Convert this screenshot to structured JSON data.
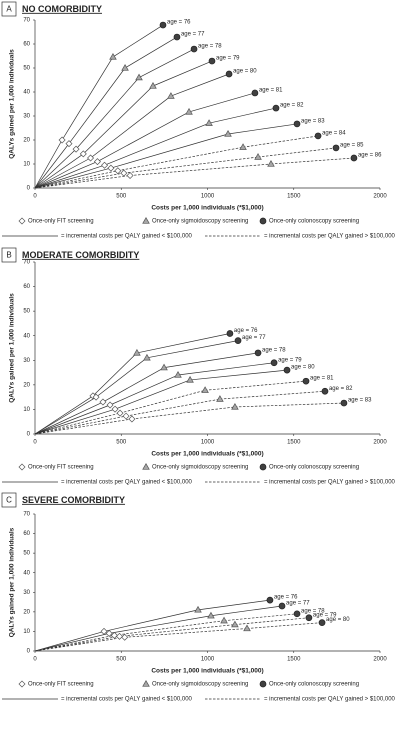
{
  "chart_data": [
    {
      "type": "scatter",
      "label": "A",
      "title": "NO COMORBIDITY",
      "xlabel": "Costs per 1,000  individuals (*$1,000)",
      "ylabel": "QALYs gained per 1,000 individuals",
      "xlim": [
        0,
        2000
      ],
      "ylim": [
        0,
        70
      ],
      "xticks": [
        0,
        500,
        1000,
        1500,
        2000
      ],
      "yticks": [
        0,
        10,
        20,
        30,
        40,
        50,
        60,
        70
      ],
      "series": [
        {
          "name": "Once-only FIT screening",
          "marker": "diamond",
          "color": "#ffffff",
          "x": [
            157,
            197,
            238,
            280,
            322,
            362,
            403,
            440,
            480,
            515,
            551
          ],
          "values": [
            20,
            18.5,
            16.2,
            14.2,
            12.5,
            11,
            9.5,
            8.3,
            7.2,
            6.2,
            5.2
          ]
        },
        {
          "name": "Once-only sigmoidoscopy screening",
          "marker": "triangle",
          "color": "#a6a6a6",
          "x": [
            452,
            522,
            603,
            684,
            788,
            893,
            1009,
            1119,
            1206,
            1293,
            1368
          ],
          "values": [
            54.6,
            50,
            46,
            42.5,
            38.3,
            31.7,
            27,
            22.5,
            17,
            12.9,
            10
          ]
        },
        {
          "name": "Once-only colonoscopy screening",
          "marker": "circle",
          "color": "#404040",
          "x": [
            742,
            823,
            922,
            1026,
            1125,
            1275,
            1397,
            1519,
            1641,
            1745,
            1849
          ],
          "values": [
            67.9,
            62.9,
            57.9,
            52.9,
            47.5,
            39.6,
            33.3,
            26.7,
            21.7,
            16.7,
            12.5
          ],
          "point_labels": [
            "age = 76",
            "age = 77",
            "age = 78",
            "age = 79",
            "age = 80",
            "age = 81",
            "age = 82",
            "age = 83",
            "age = 84",
            "age = 85",
            "age = 86"
          ]
        }
      ],
      "line_styles": [
        "solid",
        "solid",
        "solid",
        "solid",
        "solid",
        "solid",
        "solid",
        "solid",
        "dashed",
        "dashed",
        "dashed"
      ],
      "line_legend": [
        {
          "style": "solid",
          "label": "= incremental costs per QALY gained < $100,000"
        },
        {
          "style": "dashed",
          "label": "= incremental costs per QALY gained > $100,000"
        }
      ]
    },
    {
      "type": "scatter",
      "label": "B",
      "title": "MODERATE COMORBIDITY",
      "xlabel": "Costs per 1,000  individuals (*$1,000)",
      "ylabel": "QALYs gained per 1,000 individuals",
      "xlim": [
        0,
        2000
      ],
      "ylim": [
        0,
        70
      ],
      "xticks": [
        0,
        500,
        1000,
        1500,
        2000
      ],
      "yticks": [
        0,
        10,
        20,
        30,
        40,
        50,
        60,
        70
      ],
      "series": [
        {
          "name": "Once-only FIT screening",
          "marker": "diamond",
          "color": "#ffffff",
          "x": [
            336,
            354,
            394,
            435,
            464,
            493,
            528,
            562
          ],
          "values": [
            15.5,
            15,
            13,
            11.8,
            10.1,
            8.5,
            7.3,
            6.1
          ]
        },
        {
          "name": "Once-only sigmoidoscopy screening",
          "marker": "triangle",
          "color": "#a6a6a6",
          "x": [
            591,
            649,
            748,
            829,
            899,
            986,
            1072,
            1159
          ],
          "values": [
            33,
            31,
            27,
            24,
            22,
            17.8,
            14.2,
            11
          ]
        },
        {
          "name": "Once-only colonoscopy screening",
          "marker": "circle",
          "color": "#404040",
          "x": [
            1130,
            1177,
            1293,
            1386,
            1461,
            1571,
            1681,
            1791
          ],
          "values": [
            40.9,
            38,
            33,
            29,
            26,
            21.5,
            17.4,
            12.6
          ],
          "point_labels": [
            "age = 76",
            "age = 77",
            "age = 78",
            "age = 79",
            "age = 80",
            "age = 81",
            "age = 82",
            "age = 83"
          ]
        }
      ],
      "line_styles": [
        "solid",
        "solid",
        "solid",
        "solid",
        "solid",
        "dashed",
        "dashed",
        "dashed"
      ],
      "line_legend": [
        {
          "style": "solid",
          "label": "= incremental costs per QALY gained < $100,000"
        },
        {
          "style": "dashed",
          "label": "= incremental costs per QALY gained > $100,000"
        }
      ]
    },
    {
      "type": "scatter",
      "label": "C",
      "title": "SEVERE COMORBIDITY",
      "xlabel": "Costs per 1,000  individuals (*$1,000)",
      "ylabel": "QALYs gained per 1,000 individuals",
      "xlim": [
        0,
        2000
      ],
      "ylim": [
        0,
        70
      ],
      "xticks": [
        0,
        500,
        1000,
        1500,
        2000
      ],
      "yticks": [
        0,
        10,
        20,
        30,
        40,
        50,
        60,
        70
      ],
      "series": [
        {
          "name": "Once-only FIT screening",
          "marker": "diamond",
          "color": "#ffffff",
          "x": [
            400,
            430,
            460,
            490,
            520
          ],
          "values": [
            10,
            9,
            8,
            7.5,
            7
          ]
        },
        {
          "name": "Once-only sigmoidoscopy screening",
          "marker": "triangle",
          "color": "#a6a6a6",
          "x": [
            945,
            1020,
            1096,
            1159,
            1229
          ],
          "values": [
            21,
            18,
            15.5,
            13.5,
            11.5
          ]
        },
        {
          "name": "Once-only colonoscopy screening",
          "marker": "circle",
          "color": "#404040",
          "x": [
            1362,
            1432,
            1519,
            1588,
            1664
          ],
          "values": [
            26,
            23,
            19,
            17,
            14.5
          ],
          "point_labels": [
            "age = 76",
            "age = 77",
            "age = 78",
            "age = 79",
            "age = 80"
          ]
        }
      ],
      "line_styles": [
        "solid",
        "solid",
        "dashed",
        "dashed",
        "dashed"
      ],
      "line_legend": [
        {
          "style": "solid",
          "label": "= incremental costs per QALY gained < $100,000"
        },
        {
          "style": "dashed",
          "label": "= incremental costs per QALY gained > $100,000"
        }
      ]
    }
  ]
}
